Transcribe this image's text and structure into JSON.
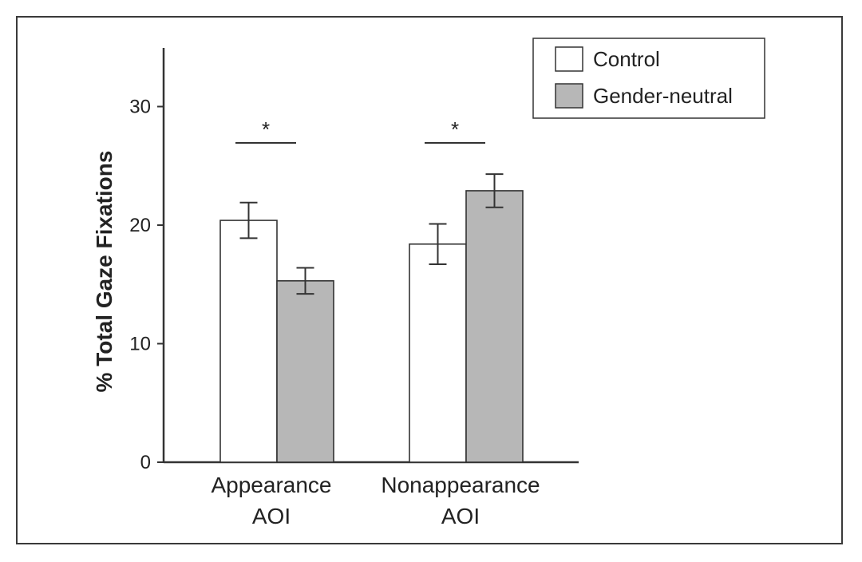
{
  "chart_data": {
    "type": "bar",
    "title": "",
    "xlabel": "",
    "ylabel": "% Total Gaze Fixations",
    "ylim": [
      0,
      35
    ],
    "yticks": [
      0,
      10,
      20,
      30
    ],
    "categories": [
      {
        "line1": "Appearance",
        "line2": "AOI"
      },
      {
        "line1": "Nonappearance",
        "line2": "AOI"
      }
    ],
    "series": [
      {
        "name": "Control",
        "color": "#ffffff",
        "values": [
          20.4,
          18.4
        ],
        "errors": [
          1.5,
          1.7
        ]
      },
      {
        "name": "Gender-neutral",
        "color": "#b7b7b7",
        "values": [
          15.3,
          22.9
        ],
        "errors": [
          1.1,
          1.4
        ]
      }
    ],
    "significance": [
      "*",
      "*"
    ],
    "legend_position": "top-right"
  }
}
